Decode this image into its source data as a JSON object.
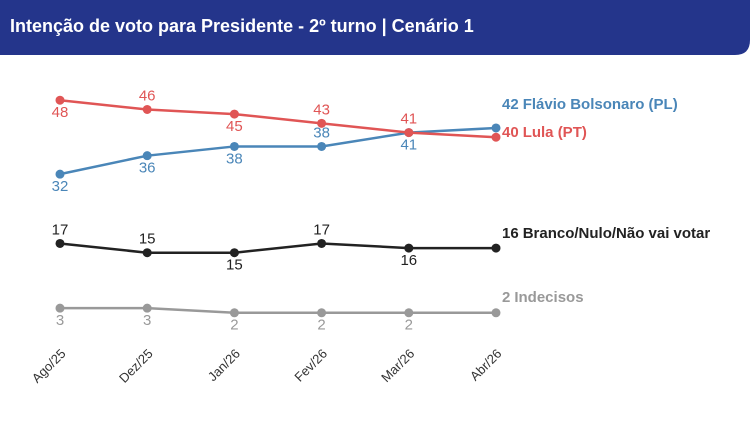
{
  "chart_data": {
    "type": "line",
    "title": "Intenção de voto para Presidente - 2º turno | Cenário 1",
    "categories": [
      "Ago/25",
      "Dez/25",
      "Jan/26",
      "Fev/26",
      "Mar/26",
      "Abr/26"
    ],
    "ylim": [
      0,
      50
    ],
    "series": [
      {
        "name": "Flávio Bolsonaro (PL)",
        "color": "#4a86b8",
        "values": [
          32,
          36,
          38,
          38,
          41,
          42
        ]
      },
      {
        "name": "Lula (PT)",
        "color": "#e05555",
        "values": [
          48,
          46,
          45,
          43,
          41,
          40
        ]
      },
      {
        "name": "Branco/Nulo/Não vai votar",
        "color": "#222222",
        "values": [
          17,
          15,
          15,
          17,
          16,
          16
        ]
      },
      {
        "name": "Indecisos",
        "color": "#999999",
        "values": [
          3,
          3,
          2,
          2,
          2,
          2
        ]
      }
    ]
  }
}
